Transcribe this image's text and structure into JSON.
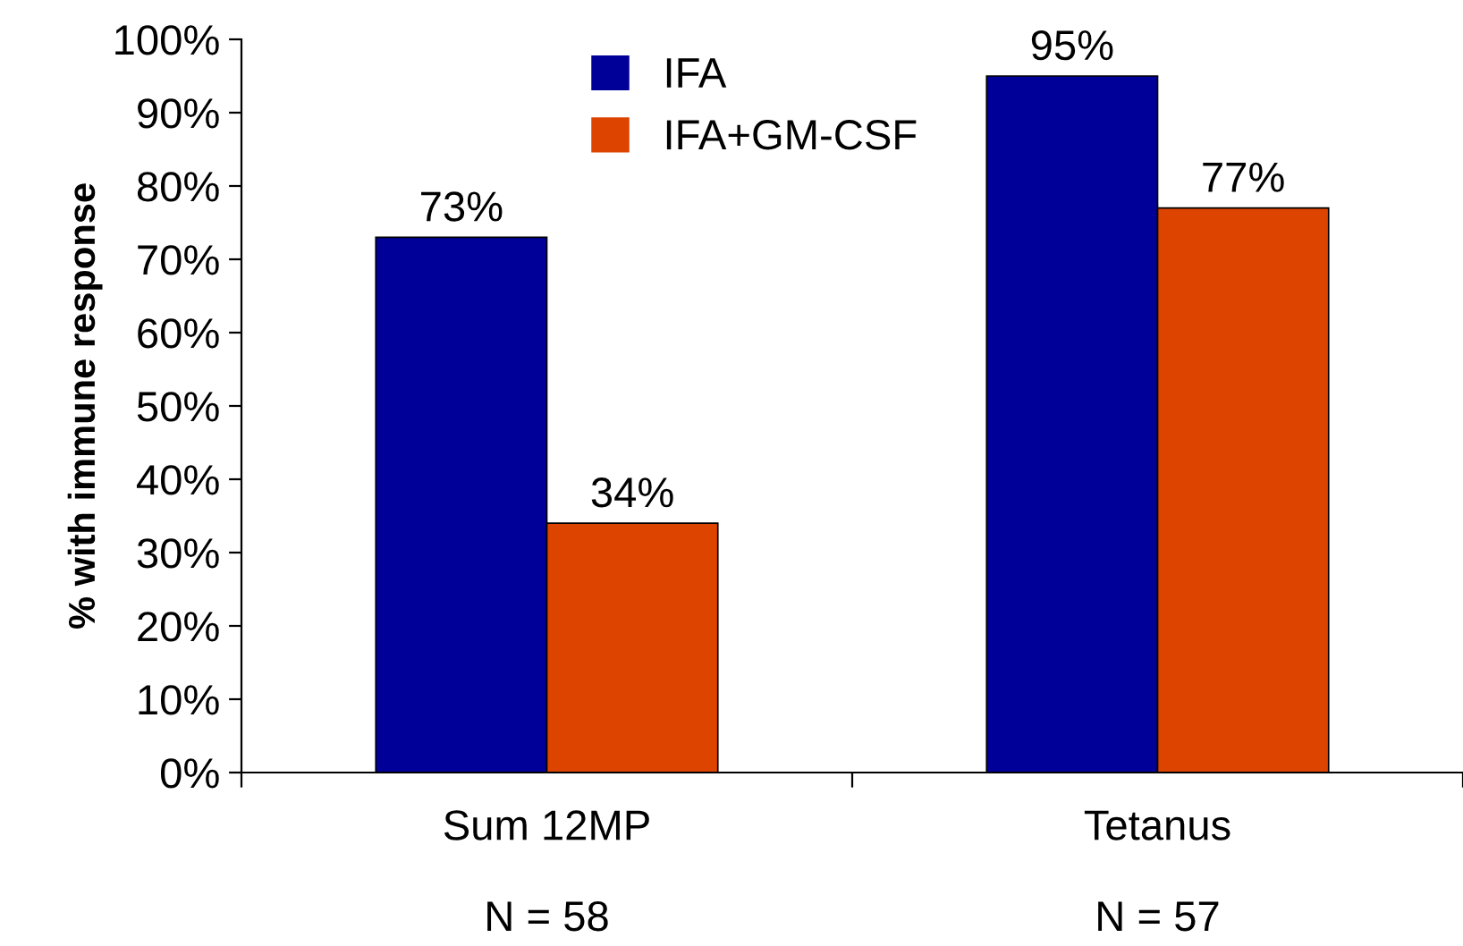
{
  "chart_data": {
    "type": "bar",
    "ylabel": "% with immune response",
    "categories": [
      "Sum 12MP\n\nN = 58",
      "Tetanus\n\nN = 57"
    ],
    "series": [
      {
        "name": "IFA",
        "color": "#000099",
        "values": [
          73,
          95
        ],
        "value_labels": [
          "73%",
          "95%"
        ]
      },
      {
        "name": "IFA+GM-CSF",
        "color": "#dd4400",
        "values": [
          34,
          77
        ],
        "value_labels": [
          "34%",
          "77%"
        ]
      }
    ],
    "ylim": [
      0,
      100
    ],
    "yticks": [
      {
        "value": 0,
        "label": "0%"
      },
      {
        "value": 10,
        "label": "10%"
      },
      {
        "value": 20,
        "label": "20%"
      },
      {
        "value": 30,
        "label": "30%"
      },
      {
        "value": 40,
        "label": "40%"
      },
      {
        "value": 50,
        "label": "50%"
      },
      {
        "value": 60,
        "label": "60%"
      },
      {
        "value": 70,
        "label": "70%"
      },
      {
        "value": 80,
        "label": "80%"
      },
      {
        "value": 90,
        "label": "90%"
      },
      {
        "value": 100,
        "label": "100%"
      }
    ],
    "grid": false,
    "legend": "top"
  }
}
